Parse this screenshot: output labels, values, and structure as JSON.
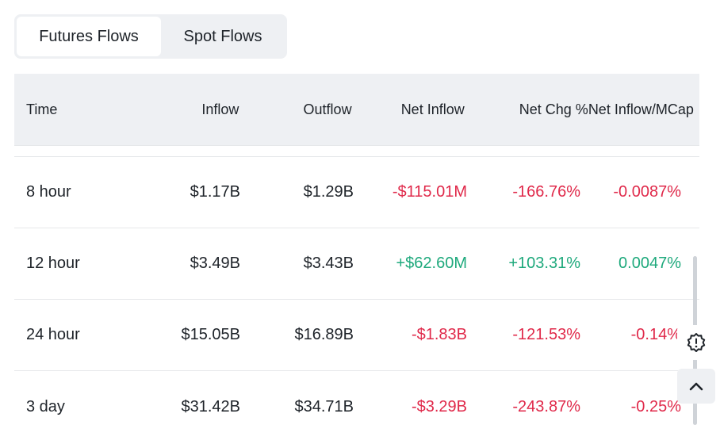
{
  "tabs": [
    {
      "label": "Futures Flows",
      "active": true
    },
    {
      "label": "Spot Flows",
      "active": false
    }
  ],
  "table": {
    "headers": {
      "time": "Time",
      "inflow": "Inflow",
      "outflow": "Outflow",
      "net_inflow": "Net Inflow",
      "net_chg": "Net Chg %",
      "net_inflow_mcap": "Net Inflow/MCap"
    },
    "rows": [
      {
        "time": "8 hour",
        "inflow": "$1.17B",
        "outflow": "$1.29B",
        "net_inflow": "-$115.01M",
        "net_chg": "-166.76%",
        "mcap": "-0.0087%",
        "sign": "neg"
      },
      {
        "time": "12 hour",
        "inflow": "$3.49B",
        "outflow": "$3.43B",
        "net_inflow": "+$62.60M",
        "net_chg": "+103.31%",
        "mcap": "0.0047%",
        "sign": "pos"
      },
      {
        "time": "24 hour",
        "inflow": "$15.05B",
        "outflow": "$16.89B",
        "net_inflow": "-$1.83B",
        "net_chg": "-121.53%",
        "mcap": "-0.14%",
        "sign": "neg"
      },
      {
        "time": "3 day",
        "inflow": "$31.42B",
        "outflow": "$34.71B",
        "net_inflow": "-$3.29B",
        "net_chg": "-243.87%",
        "mcap": "-0.25%",
        "sign": "neg"
      }
    ]
  },
  "colors": {
    "negative": "#e0294a",
    "positive": "#1ea97c",
    "header_bg": "#eef0f3"
  },
  "icons": {
    "feedback": "alert-badge-icon",
    "scroll_top": "chevron-up-icon"
  }
}
